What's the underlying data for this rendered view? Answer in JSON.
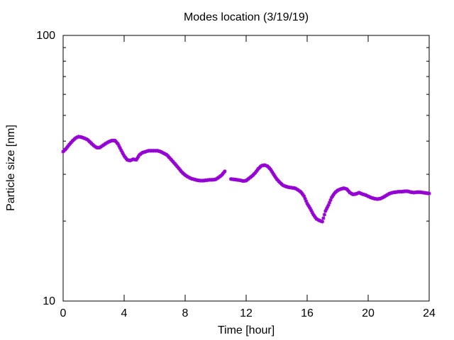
{
  "chart_data": {
    "type": "scatter",
    "title": "Modes location (3/19/19)",
    "xlabel": "Time [hour]",
    "ylabel": "Particle size [nm]",
    "xlim": [
      0,
      24
    ],
    "ylim": [
      10,
      100
    ],
    "y_scale": "log",
    "x_ticks": [
      "0",
      "4",
      "8",
      "12",
      "16",
      "20",
      "24"
    ],
    "y_ticks": [
      "10",
      "100"
    ],
    "grid": false,
    "legend": "none",
    "marker_color": "#9400d3",
    "x": [
      0.0,
      0.2,
      0.4,
      0.6,
      0.8,
      1.0,
      1.2,
      1.4,
      1.6,
      1.8,
      2.0,
      2.2,
      2.4,
      2.6,
      2.8,
      3.0,
      3.2,
      3.4,
      3.6,
      3.8,
      4.0,
      4.2,
      4.4,
      4.6,
      4.8,
      5.0,
      5.2,
      5.4,
      5.6,
      5.8,
      6.0,
      6.2,
      6.4,
      6.6,
      6.8,
      7.0,
      7.2,
      7.4,
      7.6,
      7.8,
      8.0,
      8.2,
      8.4,
      8.6,
      8.8,
      9.0,
      9.2,
      9.4,
      9.6,
      9.8,
      10.0,
      10.2,
      10.4,
      10.6,
      10.8,
      11.0,
      11.2,
      11.4,
      11.6,
      11.8,
      12.0,
      12.2,
      12.4,
      12.6,
      12.8,
      13.0,
      13.2,
      13.4,
      13.6,
      13.8,
      14.0,
      14.2,
      14.4,
      14.6,
      14.8,
      15.0,
      15.2,
      15.4,
      15.6,
      15.8,
      16.0,
      16.2,
      16.4,
      16.6,
      16.8,
      17.0,
      17.2,
      17.4,
      17.6,
      17.8,
      18.0,
      18.2,
      18.4,
      18.6,
      18.8,
      19.0,
      19.2,
      19.4,
      19.6,
      19.8,
      20.0,
      20.2,
      20.4,
      20.6,
      20.8,
      21.0,
      21.2,
      21.4,
      21.6,
      21.8,
      22.0,
      22.2,
      22.4,
      22.6,
      22.8,
      23.0,
      23.2,
      23.4,
      23.6,
      23.8,
      24.0
    ],
    "y": [
      36.5,
      37.5,
      38.8,
      40.0,
      41.0,
      41.6,
      41.4,
      41.0,
      40.5,
      39.5,
      38.5,
      37.8,
      37.8,
      38.5,
      39.2,
      39.8,
      40.2,
      40.2,
      39.0,
      37.0,
      35.2,
      34.0,
      33.8,
      34.2,
      34.0,
      35.5,
      36.2,
      36.5,
      36.8,
      36.8,
      36.8,
      36.8,
      36.5,
      36.0,
      35.5,
      34.5,
      33.5,
      32.5,
      31.5,
      30.5,
      29.8,
      29.3,
      28.9,
      28.7,
      28.5,
      28.4,
      28.4,
      28.5,
      28.6,
      28.6,
      28.7,
      29.2,
      29.8,
      30.8,
      null,
      28.8,
      28.7,
      28.6,
      28.5,
      28.3,
      28.4,
      29.0,
      29.6,
      30.4,
      31.5,
      32.3,
      32.5,
      32.2,
      31.3,
      30.0,
      28.8,
      28.0,
      27.3,
      27.0,
      26.8,
      26.7,
      26.6,
      26.2,
      25.7,
      24.8,
      23.3,
      22.3,
      21.2,
      20.4,
      20.1,
      19.9,
      21.8,
      23.0,
      24.5,
      25.5,
      26.1,
      26.4,
      26.6,
      26.4,
      25.6,
      25.2,
      25.3,
      25.6,
      25.3,
      25.1,
      24.8,
      24.5,
      24.3,
      24.2,
      24.3,
      24.6,
      25.0,
      25.4,
      25.6,
      25.7,
      25.8,
      25.8,
      25.9,
      25.9,
      25.7,
      25.6,
      25.7,
      25.7,
      25.6,
      25.5,
      25.4
    ]
  }
}
